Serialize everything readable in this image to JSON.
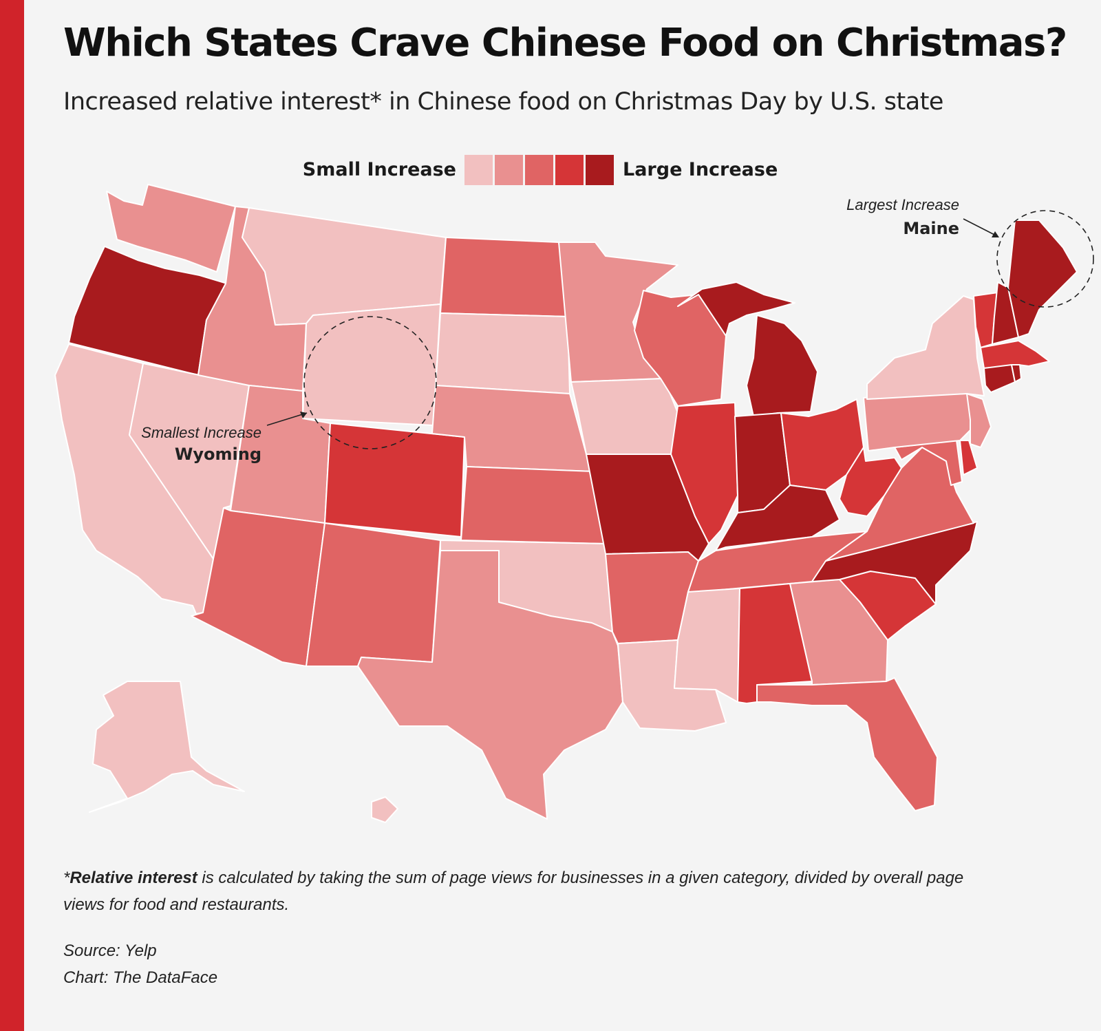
{
  "title": "Which States Crave Chinese Food on Christmas?",
  "subtitle": "Increased relative interest* in Chinese food on Christmas Day by U.S. state",
  "legend": {
    "low_label": "Small Increase",
    "high_label": "Large Increase",
    "colors": [
      "#f2c0c0",
      "#e99090",
      "#e06464",
      "#d53537",
      "#a81b1e"
    ]
  },
  "annotations": {
    "smallest": {
      "caption": "Smallest Increase",
      "state": "Wyoming"
    },
    "largest": {
      "caption": "Largest Increase",
      "state": "Maine"
    }
  },
  "footnote": {
    "lead": "*",
    "term": "Relative interest",
    "text": " is calculated by taking the sum of page views for businesses in a given category, divided by overall page views for food and restaurants."
  },
  "source": "Source: Yelp",
  "credit": "Chart: The DataFace",
  "chart_data": {
    "type": "choropleth",
    "scale": "5-level ordinal (1 = small increase, 5 = large increase)",
    "levels": {
      "Washington": 2,
      "Oregon": 5,
      "California": 1,
      "Nevada": 1,
      "Idaho": 2,
      "Montana": 1,
      "Wyoming": 1,
      "Utah": 2,
      "Arizona": 3,
      "Colorado": 4,
      "New Mexico": 3,
      "North Dakota": 3,
      "South Dakota": 1,
      "Nebraska": 2,
      "Kansas": 3,
      "Oklahoma": 1,
      "Texas": 2,
      "Minnesota": 2,
      "Iowa": 1,
      "Missouri": 5,
      "Arkansas": 3,
      "Louisiana": 1,
      "Wisconsin": 3,
      "Illinois": 4,
      "Michigan": 5,
      "Indiana": 5,
      "Ohio": 4,
      "Kentucky": 5,
      "Tennessee": 3,
      "Mississippi": 1,
      "Alabama": 4,
      "Georgia": 2,
      "Florida": 3,
      "South Carolina": 4,
      "North Carolina": 5,
      "Virginia": 3,
      "West Virginia": 4,
      "Maryland": 3,
      "Delaware": 4,
      "Pennsylvania": 2,
      "New Jersey": 2,
      "New York": 1,
      "Connecticut": 5,
      "Rhode Island": 5,
      "Massachusetts": 4,
      "Vermont": 4,
      "New Hampshire": 5,
      "Maine": 5,
      "Alaska": 1,
      "Hawaii": 1
    }
  }
}
